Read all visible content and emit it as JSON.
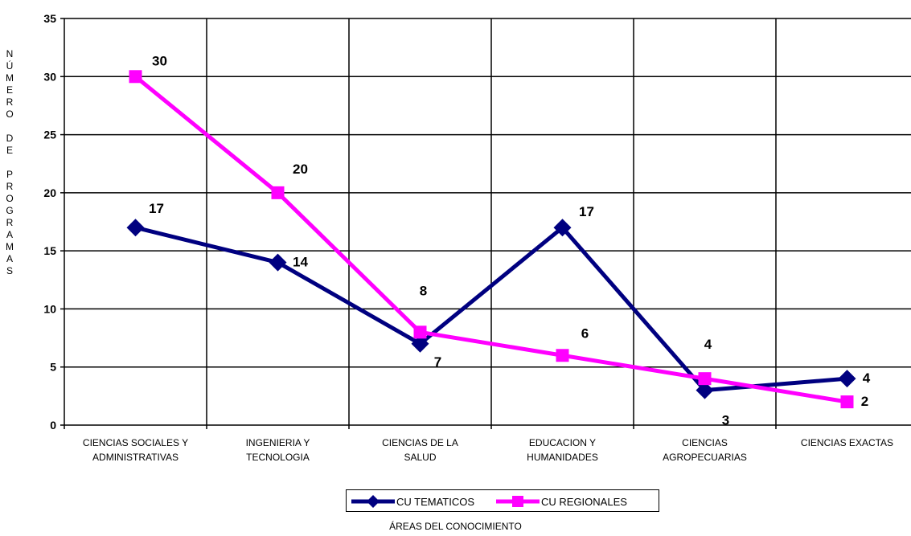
{
  "chart_data": {
    "type": "line",
    "categories": [
      [
        "CIENCIAS SOCIALES Y",
        "ADMINISTRATIVAS"
      ],
      [
        "INGENIERIA Y",
        "TECNOLOGIA"
      ],
      [
        "CIENCIAS DE LA",
        "SALUD"
      ],
      [
        "EDUCACION Y",
        "HUMANIDADES"
      ],
      [
        "CIENCIAS",
        "AGROPECUARIAS"
      ],
      [
        "CIENCIAS EXACTAS"
      ]
    ],
    "series": [
      {
        "name": "CU TEMATICOS",
        "color": "#000080",
        "marker": "diamond",
        "values": [
          17,
          14,
          7,
          17,
          3,
          4
        ],
        "labels": [
          "17",
          "14",
          "7",
          "17",
          "3",
          "4"
        ]
      },
      {
        "name": "CU REGIONALES",
        "color": "#FF00FF",
        "marker": "square",
        "values": [
          30,
          20,
          8,
          6,
          4,
          2
        ],
        "labels": [
          "30",
          "20",
          "8",
          "6",
          "4",
          "2"
        ]
      }
    ],
    "ylim": [
      0,
      35
    ],
    "yticks": [
      0,
      5,
      10,
      15,
      20,
      25,
      30,
      35
    ],
    "ylabel": "NÚMERO DE PROGRAMAS",
    "xlabel": "ÁREAS DEL CONOCIMIENTO",
    "grid": true,
    "legend_position": "bottom"
  }
}
